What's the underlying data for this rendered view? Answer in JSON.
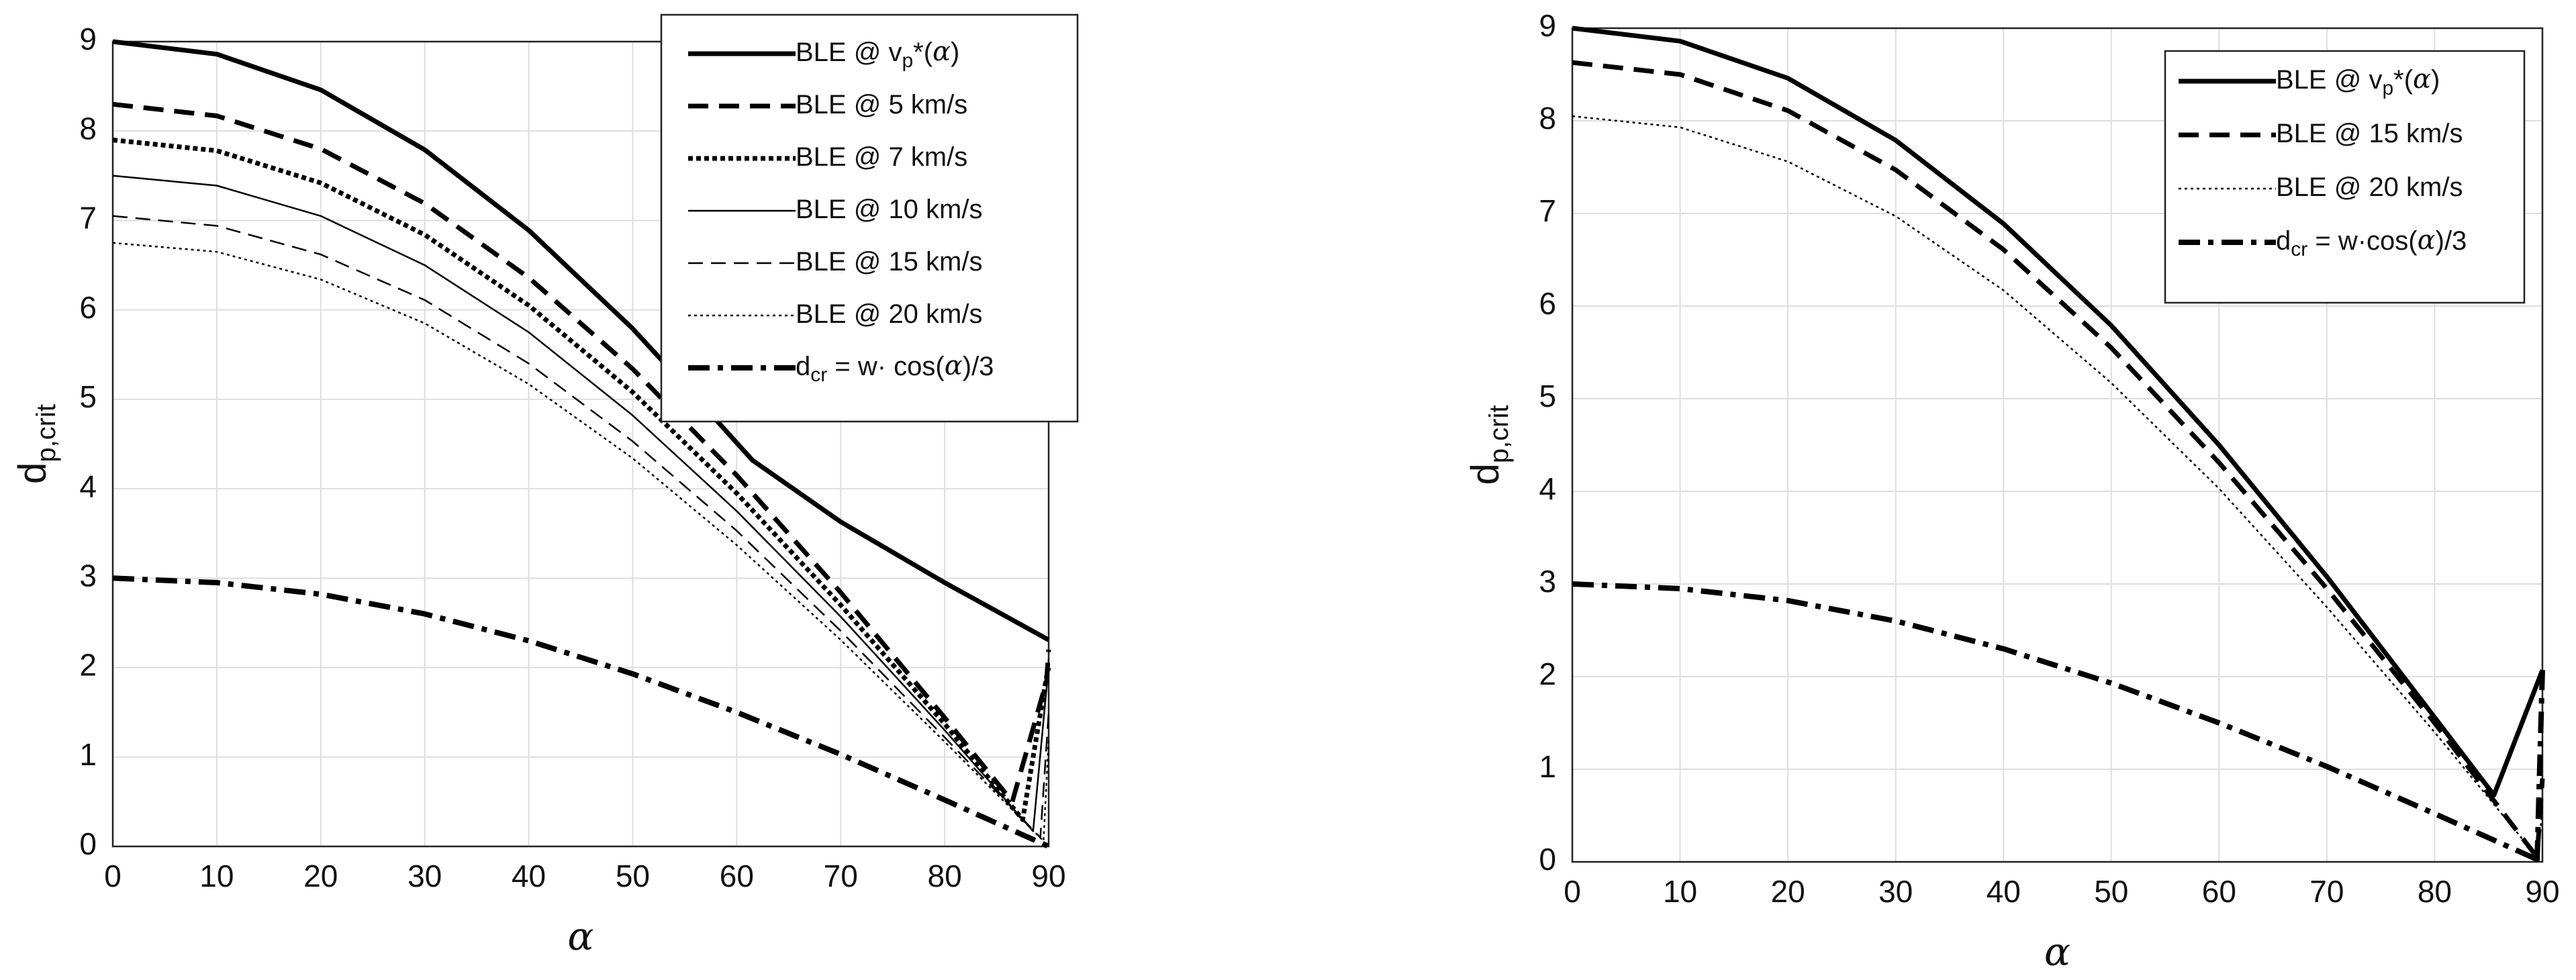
{
  "chart_data": [
    {
      "type": "line",
      "xlabel": "α",
      "ylabel": {
        "main": "d",
        "sub": "p,crit"
      },
      "xlim": [
        0,
        90
      ],
      "ylim": [
        0,
        9
      ],
      "xticks": [
        "0",
        "10",
        "20",
        "30",
        "40",
        "50",
        "60",
        "70",
        "80",
        "90"
      ],
      "yticks": [
        "0",
        "1",
        "2",
        "3",
        "4",
        "5",
        "6",
        "7",
        "8",
        "9"
      ],
      "grid": true,
      "legend_position": "top-right",
      "series": [
        {
          "name": "BLE @ v_p*(α)",
          "legend": {
            "pre": "BLE @ v",
            "sub": "p",
            "post": "*(",
            "sym": "α",
            "end": ")"
          },
          "style": "solid-thick",
          "x": [
            0,
            10,
            20,
            30,
            40,
            50,
            56,
            61.5,
            70,
            80,
            90
          ],
          "y": [
            9.0,
            8.86,
            8.46,
            7.79,
            6.89,
            5.79,
            5.03,
            4.32,
            3.63,
            2.95,
            2.31
          ]
        },
        {
          "name": "BLE @ 5 km/s",
          "legend": {
            "pre": "BLE @ 5 km/s"
          },
          "style": "dashed-thick",
          "x": [
            0,
            10,
            20,
            30,
            40,
            50,
            60,
            70,
            80,
            86.5,
            89.8,
            90
          ],
          "y": [
            8.3,
            8.17,
            7.8,
            7.19,
            6.36,
            5.34,
            4.15,
            2.84,
            1.44,
            0.5,
            1.85,
            2.2
          ]
        },
        {
          "name": "BLE @ 7 km/s",
          "legend": {
            "pre": "BLE @ 7 km/s"
          },
          "style": "dotted-thick",
          "x": [
            0,
            10,
            20,
            30,
            40,
            50,
            60,
            70,
            80,
            87.5,
            89.8,
            90
          ],
          "y": [
            7.9,
            7.78,
            7.42,
            6.84,
            6.05,
            5.08,
            3.95,
            2.7,
            1.37,
            0.3,
            1.9,
            2.0
          ]
        },
        {
          "name": "BLE @ 10 km/s",
          "legend": {
            "pre": "BLE @ 10 km/s"
          },
          "style": "solid-thin",
          "x": [
            0,
            10,
            20,
            30,
            40,
            50,
            60,
            70,
            80,
            88.5,
            89.9,
            90
          ],
          "y": [
            7.5,
            7.39,
            7.05,
            6.5,
            5.75,
            4.82,
            3.75,
            2.57,
            1.3,
            0.17,
            1.9,
            2.1
          ]
        },
        {
          "name": "BLE @ 15 km/s",
          "legend": {
            "pre": "BLE @ 15 km/s"
          },
          "style": "dashed-thin",
          "x": [
            0,
            10,
            20,
            30,
            40,
            50,
            60,
            70,
            80,
            89.2,
            90
          ],
          "y": [
            7.05,
            6.94,
            6.62,
            6.11,
            5.4,
            4.53,
            3.53,
            2.41,
            1.22,
            0.1,
            1.5
          ]
        },
        {
          "name": "BLE @ 20 km/s",
          "legend": {
            "pre": "BLE @ 20 km/s"
          },
          "style": "dotted-thin",
          "x": [
            0,
            10,
            20,
            30,
            40,
            50,
            60,
            70,
            80,
            89.5,
            90
          ],
          "y": [
            6.75,
            6.65,
            6.34,
            5.85,
            5.17,
            4.34,
            3.37,
            2.31,
            1.17,
            0.06,
            1.2
          ]
        },
        {
          "name": "d_cr = w· cos(α)/3",
          "legend": {
            "pre": "d",
            "sub": "cr",
            "post": " = w· cos(",
            "sym": "α",
            "end": ")/3"
          },
          "style": "dashdot-thick",
          "x": [
            0,
            10,
            20,
            30,
            40,
            50,
            60,
            70,
            80,
            90
          ],
          "y": [
            3.0,
            2.95,
            2.82,
            2.6,
            2.3,
            1.93,
            1.5,
            1.03,
            0.52,
            0.0
          ]
        }
      ]
    },
    {
      "type": "line",
      "xlabel": "α",
      "ylabel": {
        "main": "d",
        "sub": "p,crit"
      },
      "xlim": [
        0,
        90
      ],
      "ylim": [
        0,
        9
      ],
      "xticks": [
        "0",
        "10",
        "20",
        "30",
        "40",
        "50",
        "60",
        "70",
        "80",
        "90"
      ],
      "yticks": [
        "0",
        "1",
        "2",
        "3",
        "4",
        "5",
        "6",
        "7",
        "8",
        "9"
      ],
      "grid": true,
      "legend_position": "top-right",
      "series": [
        {
          "name": "BLE @ v_p*(α)",
          "legend": {
            "pre": "BLE @ v",
            "sub": "p",
            "post": "*(",
            "sym": "α",
            "end": ")"
          },
          "style": "solid-thick",
          "x": [
            0,
            10,
            20,
            30,
            40,
            50,
            60,
            70,
            80,
            85.5,
            90
          ],
          "y": [
            9.0,
            8.86,
            8.46,
            7.79,
            6.89,
            5.79,
            4.5,
            3.08,
            1.56,
            0.72,
            2.07
          ]
        },
        {
          "name": "BLE @ 15 km/s",
          "legend": {
            "pre": "BLE @ 15 km/s"
          },
          "style": "dashed-thick",
          "x": [
            0,
            10,
            20,
            30,
            40,
            50,
            60,
            70,
            80,
            89.5,
            90
          ],
          "y": [
            8.63,
            8.5,
            8.11,
            7.47,
            6.61,
            5.55,
            4.31,
            2.95,
            1.5,
            0.05,
            0.9
          ]
        },
        {
          "name": "BLE @ 20 km/s",
          "legend": {
            "pre": "BLE @ 20 km/s"
          },
          "style": "dotted-thin",
          "x": [
            0,
            10,
            20,
            30,
            40,
            50,
            60,
            70,
            80,
            89.6,
            90
          ],
          "y": [
            8.05,
            7.93,
            7.56,
            6.97,
            6.17,
            5.17,
            4.03,
            2.75,
            1.4,
            0.04,
            0.6
          ]
        },
        {
          "name": "d_cr = w·cos(α)/3",
          "legend": {
            "pre": "d",
            "sub": "cr",
            "post": " = w·cos(",
            "sym": "α",
            "end": ")/3"
          },
          "style": "dashdot-thick",
          "x": [
            0,
            10,
            20,
            30,
            40,
            50,
            60,
            70,
            80,
            90
          ],
          "y": [
            3.0,
            2.95,
            2.82,
            2.6,
            2.3,
            1.93,
            1.5,
            1.03,
            0.52,
            0.0
          ],
          "extra": {
            "x": [
              89.5,
              90.0
            ],
            "y": [
              0.0,
              2.07
            ]
          }
        }
      ]
    }
  ]
}
